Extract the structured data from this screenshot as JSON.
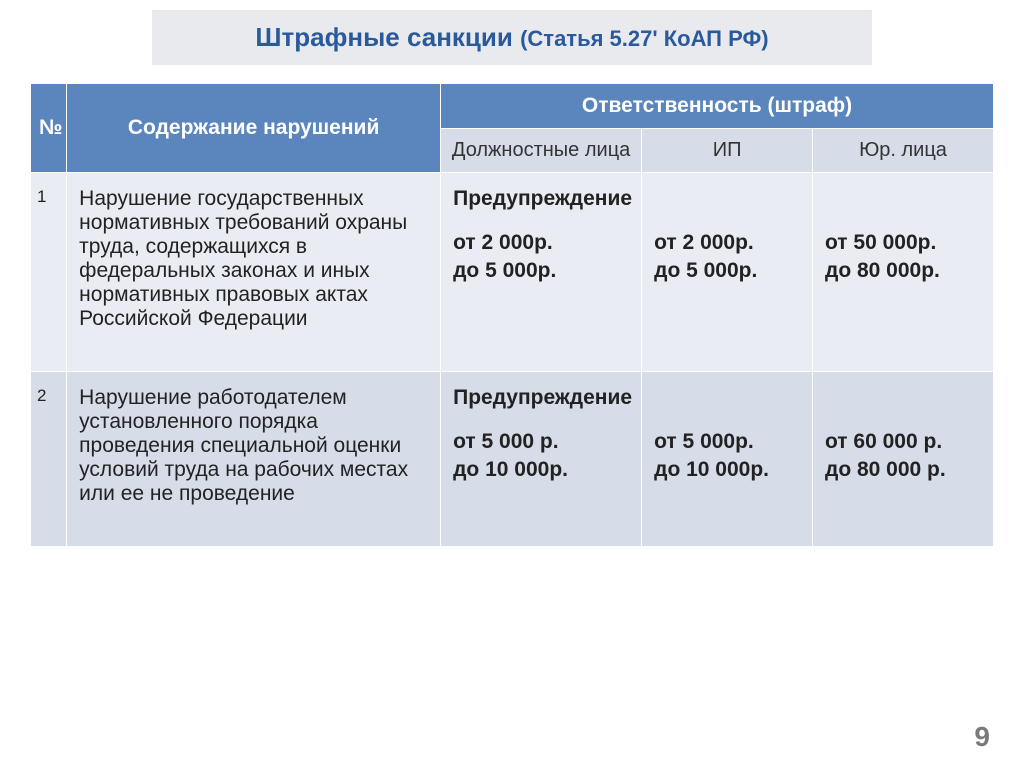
{
  "title": {
    "main": "Штрафные санкции ",
    "sub": "(Статья 5.27' КоАП РФ)"
  },
  "header": {
    "num": "№",
    "desc": "Содержание нарушений",
    "resp": "Ответственность (штраф)",
    "officials": "Должностные лица",
    "ip": "ИП",
    "jur": "Юр. лица"
  },
  "rows": [
    {
      "n": "1",
      "desc": "Нарушение государственных нормативных требований охраны труда, содержащихся в федеральных законах и иных нормативных правовых актах Российской Федерации",
      "officials_warn": "Предупреждение",
      "officials_range": "от 2 000р.\nдо 5 000р.",
      "ip_range": "от 2 000р.\nдо 5 000р.",
      "jur_range": "от 50 000р.\nдо 80 000р."
    },
    {
      "n": "2",
      "desc": "Нарушение работодателем установленного порядка проведения специальной оценки условий труда на рабочих местах или ее не проведение",
      "officials_warn": "Предупреждение",
      "officials_range": "от  5 000 р.\nдо 10 000р.",
      "ip_range": "от 5 000р.\nдо 10 000р.",
      "jur_range": "от 60 000 р.\nдо 80 000 р."
    }
  ],
  "page_number": "9",
  "colors": {
    "header_top_bg": "#5b86bd",
    "header_top_fg": "#ffffff",
    "header_sub_bg": "#d6dde8",
    "row_odd_bg": "#e9edf3",
    "row_even_bg": "#d6dde8",
    "title_fg": "#2a5a9c",
    "title_bg": "#e8eaed"
  }
}
